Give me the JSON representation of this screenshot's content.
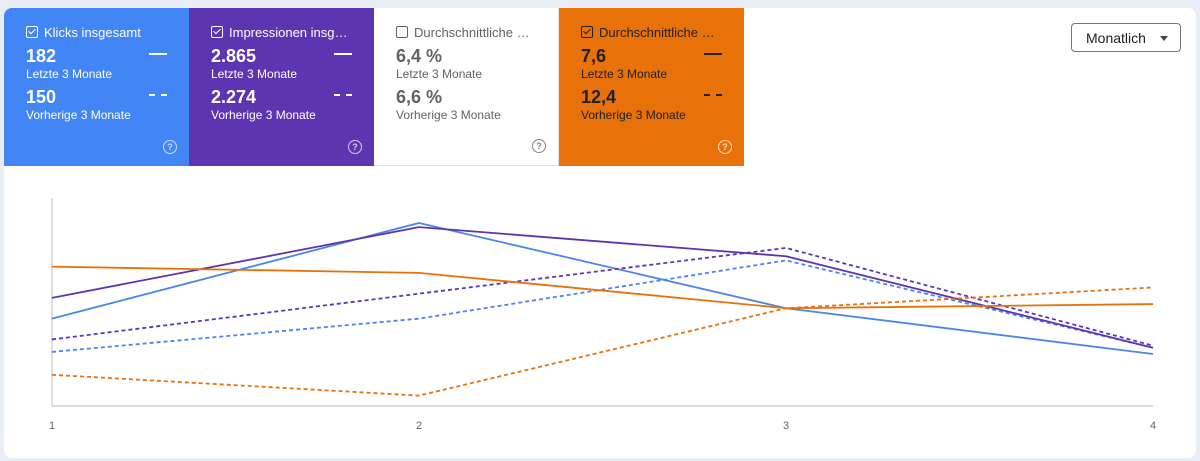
{
  "metrics": [
    {
      "id": "clicks",
      "title": "Klicks insgesamt",
      "checked": true,
      "current_value": "182",
      "current_label": "Letzte 3 Monate",
      "previous_value": "150",
      "previous_label": "Vorherige 3 Monate",
      "color": "#4285f4"
    },
    {
      "id": "impressions",
      "title": "Impressionen insgesamt",
      "checked": true,
      "current_value": "2.865",
      "current_label": "Letzte 3 Monate",
      "previous_value": "2.274",
      "previous_label": "Vorherige 3 Monate",
      "color": "#5e35b1"
    },
    {
      "id": "ctr",
      "title": "Durchschnittliche CTR",
      "checked": false,
      "current_value": "6,4 %",
      "current_label": "Letzte 3 Monate",
      "previous_value": "6,6 %",
      "previous_label": "Vorherige 3 Monate",
      "color": "#ffffff"
    },
    {
      "id": "position",
      "title": "Durchschnittliche Position",
      "checked": true,
      "current_value": "7,6",
      "current_label": "Letzte 3 Monate",
      "previous_value": "12,4",
      "previous_label": "Vorherige 3 Monate",
      "color": "#e8710a"
    }
  ],
  "help_glyph": "?",
  "period_selector": {
    "label": "Monatlich"
  },
  "chart_data": {
    "type": "line",
    "x": [
      1,
      2,
      3,
      4
    ],
    "xlabel": "",
    "ylabel": "",
    "ylim": [
      0,
      100
    ],
    "series": [
      {
        "name": "Klicks – Letzte 3 Monate",
        "values": [
          42,
          88,
          47,
          25
        ],
        "color": "#4a86e8",
        "style": "solid"
      },
      {
        "name": "Klicks – Vorherige 3 Monate",
        "values": [
          26,
          42,
          70,
          28
        ],
        "color": "#4a86e8",
        "style": "dashed"
      },
      {
        "name": "Impressionen – Letzte 3 Monate",
        "values": [
          52,
          86,
          72,
          28
        ],
        "color": "#5e35b1",
        "style": "solid"
      },
      {
        "name": "Impressionen – Vorherige 3 Monate",
        "values": [
          32,
          54,
          76,
          29
        ],
        "color": "#5e35b1",
        "style": "dashed"
      },
      {
        "name": "Position – Letzte 3 Monate",
        "values": [
          67,
          64,
          47,
          49
        ],
        "color": "#e8710a",
        "style": "solid"
      },
      {
        "name": "Position – Vorherige 3 Monate",
        "values": [
          15,
          5,
          47,
          57
        ],
        "color": "#e8710a",
        "style": "dashed"
      }
    ]
  }
}
